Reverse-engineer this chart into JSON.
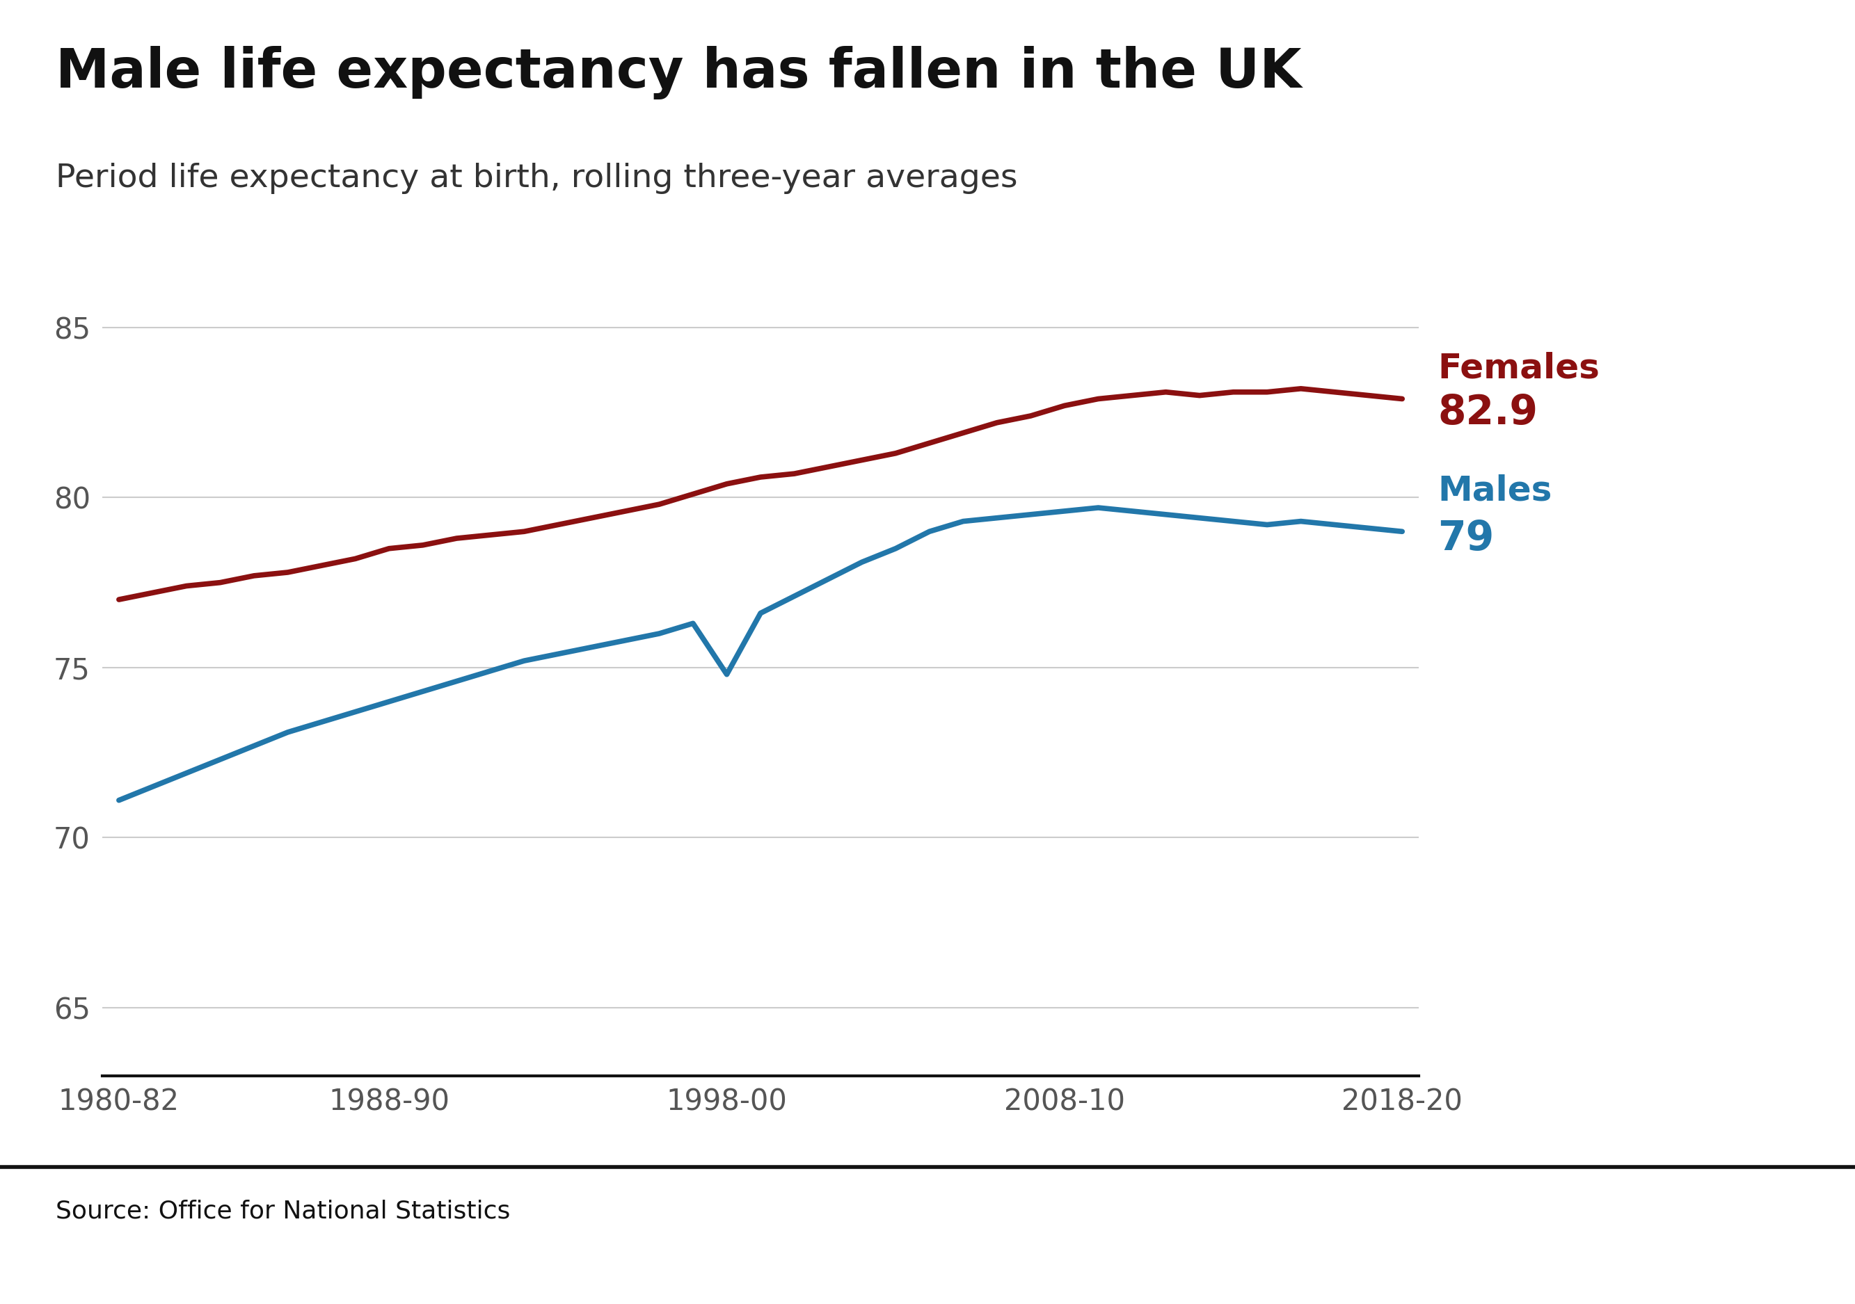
{
  "title": "Male life expectancy has fallen in the UK",
  "subtitle": "Period life expectancy at birth, rolling three-year averages",
  "source": "Source: Office for National Statistics",
  "title_fontsize": 56,
  "subtitle_fontsize": 34,
  "source_fontsize": 26,
  "background_color": "#ffffff",
  "female_color": "#8B1010",
  "male_color": "#2277AA",
  "line_width": 5.5,
  "x_labels": [
    "1980-82",
    "1988-90",
    "1998-00",
    "2008-10",
    "2018-20"
  ],
  "x_positions": [
    0,
    8,
    18,
    28,
    38
  ],
  "females": {
    "x": [
      0,
      1,
      2,
      3,
      4,
      5,
      6,
      7,
      8,
      9,
      10,
      11,
      12,
      13,
      14,
      15,
      16,
      17,
      18,
      19,
      20,
      21,
      22,
      23,
      24,
      25,
      26,
      27,
      28,
      29,
      30,
      31,
      32,
      33,
      34,
      35,
      36,
      37,
      38
    ],
    "y": [
      77.0,
      77.2,
      77.4,
      77.5,
      77.7,
      77.8,
      78.0,
      78.2,
      78.5,
      78.6,
      78.8,
      78.9,
      79.0,
      79.2,
      79.4,
      79.6,
      79.8,
      80.1,
      80.4,
      80.6,
      80.7,
      80.9,
      81.1,
      81.3,
      81.6,
      81.9,
      82.2,
      82.4,
      82.7,
      82.9,
      83.0,
      83.1,
      83.0,
      83.1,
      83.1,
      83.2,
      83.1,
      83.0,
      82.9
    ],
    "label": "Females",
    "end_value": "82.9"
  },
  "males": {
    "x": [
      0,
      1,
      2,
      3,
      4,
      5,
      6,
      7,
      8,
      9,
      10,
      11,
      12,
      13,
      14,
      15,
      16,
      17,
      18,
      19,
      20,
      21,
      22,
      23,
      24,
      25,
      26,
      27,
      28,
      29,
      30,
      31,
      32,
      33,
      34,
      35,
      36,
      37,
      38
    ],
    "y": [
      71.1,
      71.4,
      71.8,
      72.2,
      72.5,
      72.8,
      73.1,
      73.5,
      73.9,
      74.2,
      74.5,
      74.8,
      75.1,
      75.3,
      75.5,
      75.7,
      75.9,
      76.2,
      75.0,
      76.8,
      77.2,
      77.6,
      78.0,
      78.5,
      79.0,
      79.3,
      79.4,
      79.5,
      79.6,
      79.6,
      79.5,
      79.4,
      79.3,
      79.2,
      79.2,
      79.3,
      79.2,
      79.1,
      79.0
    ],
    "label": "Males",
    "end_value": "79"
  },
  "ylim": [
    63,
    86
  ],
  "yticks": [
    65,
    70,
    75,
    80,
    85
  ],
  "xlim": [
    -0.5,
    38.5
  ],
  "grid_color": "#cccccc",
  "tick_color": "#555555",
  "label_fontsize": 36,
  "value_fontsize": 42
}
